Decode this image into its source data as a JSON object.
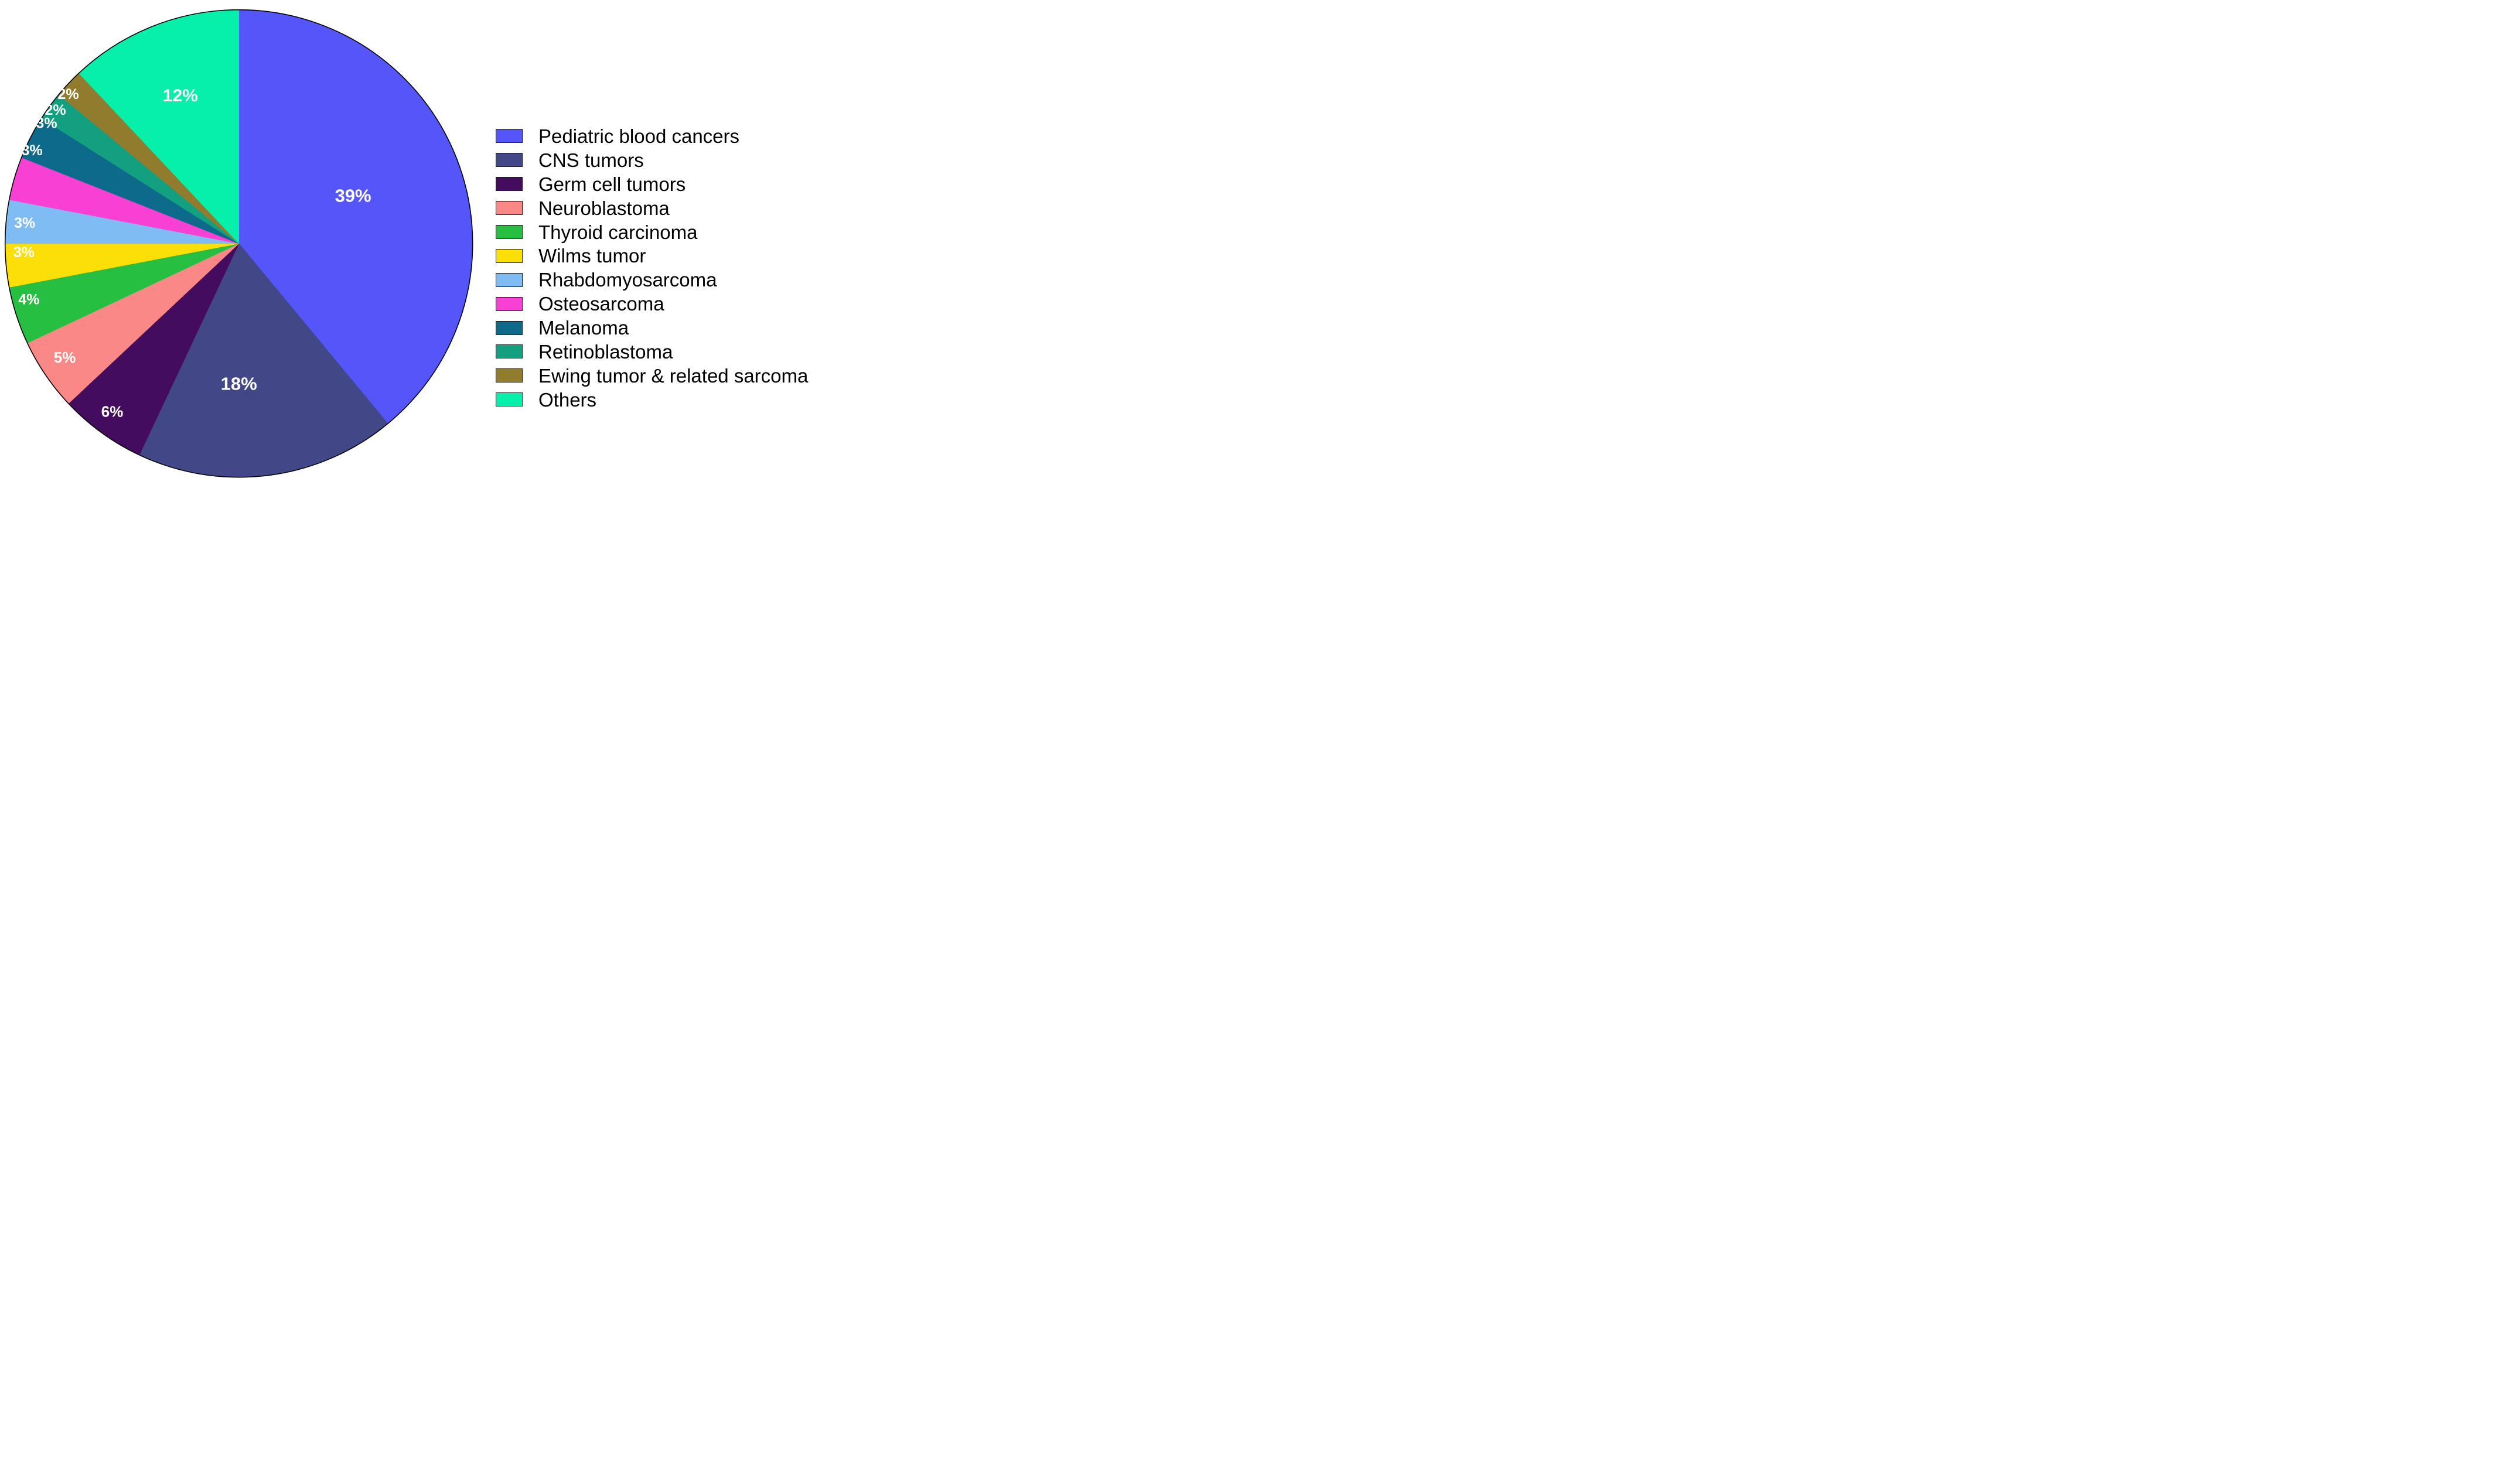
{
  "figure": {
    "background_color": "#ffffff"
  },
  "chart_data": {
    "type": "pie",
    "title": "",
    "start_angle": "12 o'clock",
    "direction": "clockwise",
    "legend_position": "right",
    "pct_label_color": "#ffffff",
    "outline_color": "#000000",
    "slices": [
      {
        "label": "Pediatric blood cancers",
        "value": 39,
        "pct_label": "39%",
        "color": "#5556FA"
      },
      {
        "label": "CNS tumors",
        "value": 18,
        "pct_label": "18%",
        "color": "#424788"
      },
      {
        "label": "Germ cell tumors",
        "value": 6,
        "pct_label": "6%",
        "color": "#440C5E"
      },
      {
        "label": "Neuroblastoma",
        "value": 5,
        "pct_label": "5%",
        "color": "#FA8886"
      },
      {
        "label": "Thyroid carcinoma",
        "value": 4,
        "pct_label": "4%",
        "color": "#27BF41"
      },
      {
        "label": "Wilms tumor",
        "value": 3,
        "pct_label": "3%",
        "color": "#FBDF07"
      },
      {
        "label": "Rhabdomyosarcoma",
        "value": 3,
        "pct_label": "3%",
        "color": "#7FBCF3"
      },
      {
        "label": "Osteosarcoma",
        "value": 3,
        "pct_label": "3%",
        "color": "#F840D4"
      },
      {
        "label": "Melanoma",
        "value": 3,
        "pct_label": "3%",
        "color": "#0D6A8B"
      },
      {
        "label": "Retinoblastoma",
        "value": 2,
        "pct_label": "2%",
        "color": "#12A080"
      },
      {
        "label": "Ewing tumor & related sarcoma",
        "value": 2,
        "pct_label": "2%",
        "color": "#917C2D"
      },
      {
        "label": "Others",
        "value": 12,
        "pct_label": "12%",
        "color": "#06EFAB"
      }
    ]
  }
}
